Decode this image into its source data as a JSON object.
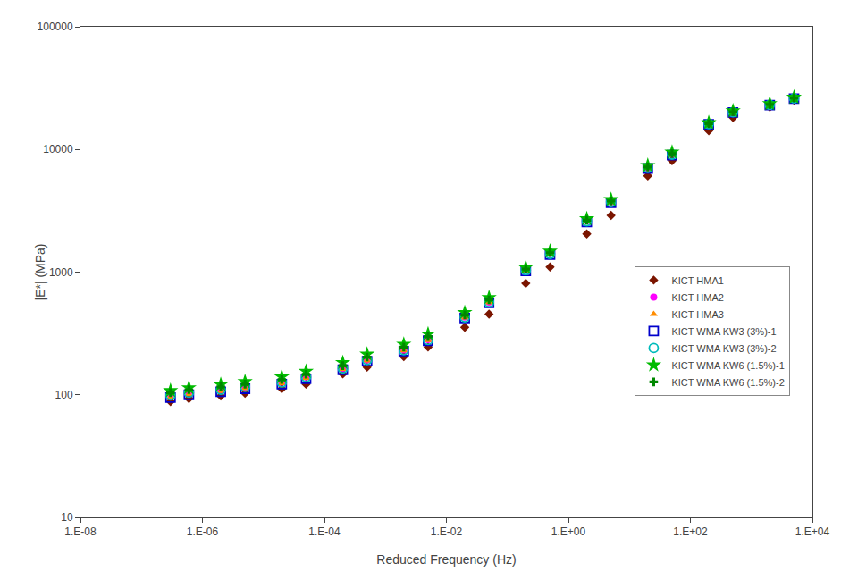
{
  "chart_data": {
    "type": "scatter",
    "xlabel": "Reduced Frequency (Hz)",
    "ylabel": "|E*| (MPa)",
    "log": true,
    "grid": false,
    "legend": "right",
    "xlim": [
      1e-08,
      10000
    ],
    "ylim": [
      10,
      100000
    ],
    "xticks": [
      {
        "value": 1e-08,
        "label": "1.E-08"
      },
      {
        "value": 1e-06,
        "label": "1.E-06"
      },
      {
        "value": 0.0001,
        "label": "1.E-04"
      },
      {
        "value": 0.01,
        "label": "1.E-02"
      },
      {
        "value": 1,
        "label": "1.E+00"
      },
      {
        "value": 100,
        "label": "1.E+02"
      },
      {
        "value": 10000,
        "label": "1.E+04"
      }
    ],
    "yticks": [
      10,
      100,
      1000,
      10000,
      100000
    ],
    "x": [
      3e-07,
      6e-07,
      2e-06,
      5e-06,
      2e-05,
      5e-05,
      0.0002,
      0.0005,
      0.002,
      0.005,
      0.02,
      0.05,
      0.2,
      0.5,
      2,
      5,
      20,
      50,
      200,
      500,
      2000,
      5000
    ],
    "series": [
      {
        "name": "KICT HMA1",
        "color": "#7B1500",
        "marker": "diamond",
        "values": [
          88,
          93,
          98,
          103,
          112,
          122,
          148,
          168,
          205,
          245,
          355,
          455,
          810,
          1100,
          2050,
          2900,
          6100,
          8100,
          14200,
          18200,
          22200,
          25200
        ]
      },
      {
        "name": "KICT HMA2",
        "color": "#FF00FF",
        "marker": "circle",
        "values": [
          100,
          105,
          110,
          115,
          127,
          140,
          165,
          192,
          232,
          282,
          430,
          570,
          1040,
          1420,
          2620,
          3750,
          7100,
          9100,
          16200,
          20200,
          23200,
          26200
        ]
      },
      {
        "name": "KICT HMA3",
        "color": "#FF8C00",
        "marker": "triangle-up",
        "values": [
          96,
          101,
          107,
          113,
          124,
          137,
          162,
          190,
          229,
          278,
          425,
          565,
          1030,
          1400,
          2580,
          3700,
          7050,
          9050,
          16100,
          20100,
          23100,
          26100
        ]
      },
      {
        "name": "KICT WMA KW3 (3%)-1",
        "color": "#0000CC",
        "marker": "square-open",
        "values": [
          95,
          100,
          106,
          112,
          122,
          135,
          160,
          188,
          227,
          276,
          422,
          562,
          1025,
          1390,
          2560,
          3680,
          7000,
          9000,
          16000,
          20000,
          23000,
          26000
        ]
      },
      {
        "name": "KICT WMA KW3 (3%)-2",
        "color": "#00BBBB",
        "marker": "circle-open",
        "values": [
          99,
          104,
          110,
          116,
          126,
          139,
          164,
          192,
          231,
          280,
          428,
          568,
          1038,
          1410,
          2600,
          3730,
          7080,
          9080,
          16100,
          20100,
          23100,
          26100
        ]
      },
      {
        "name": "KICT WMA KW6 (1.5%)-1",
        "color": "#00BB00",
        "marker": "star",
        "values": [
          108,
          114,
          121,
          128,
          140,
          155,
          183,
          214,
          258,
          313,
          468,
          620,
          1090,
          1480,
          2720,
          3900,
          7400,
          9500,
          16500,
          20600,
          23600,
          26600
        ]
      },
      {
        "name": "KICT WMA KW6 (1.5%)-2",
        "color": "#008800",
        "marker": "cross",
        "values": [
          104,
          110,
          116,
          122,
          133,
          147,
          173,
          203,
          245,
          298,
          448,
          595,
          1060,
          1440,
          2650,
          3800,
          7200,
          9250,
          16200,
          20300,
          23300,
          26300
        ]
      }
    ]
  }
}
